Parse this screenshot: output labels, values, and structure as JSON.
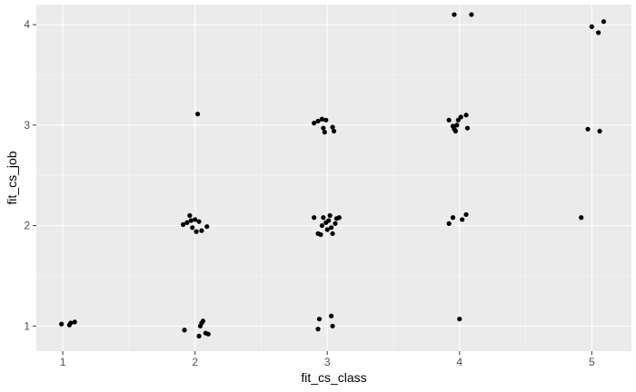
{
  "chart_data": {
    "type": "scatter",
    "title": "",
    "xlabel": "fit_cs_class",
    "ylabel": "fit_cs_job",
    "xlim": [
      0.8,
      5.3
    ],
    "ylim": [
      0.75,
      4.2
    ],
    "x_ticks": [
      1,
      2,
      3,
      4,
      5
    ],
    "y_ticks": [
      1,
      2,
      3,
      4
    ],
    "x_tick_labels": [
      "1",
      "2",
      "3",
      "4",
      "5"
    ],
    "y_tick_labels": [
      "1",
      "2",
      "3",
      "4"
    ],
    "grid": true,
    "colors": {
      "panel_bg": "#ebebeb",
      "grid_major": "#ffffff",
      "grid_minor": "#f5f5f5",
      "point": "#000000",
      "tick": "#333333"
    },
    "points": [
      {
        "x": 0.99,
        "y": 1.02
      },
      {
        "x": 1.05,
        "y": 1.01
      },
      {
        "x": 1.06,
        "y": 1.03
      },
      {
        "x": 1.09,
        "y": 1.04
      },
      {
        "x": 1.92,
        "y": 0.96
      },
      {
        "x": 2.03,
        "y": 0.9
      },
      {
        "x": 2.04,
        "y": 1.0
      },
      {
        "x": 2.05,
        "y": 1.03
      },
      {
        "x": 2.06,
        "y": 1.05
      },
      {
        "x": 2.08,
        "y": 0.93
      },
      {
        "x": 2.1,
        "y": 0.92
      },
      {
        "x": 2.02,
        "y": 3.11
      },
      {
        "x": 1.91,
        "y": 2.01
      },
      {
        "x": 1.94,
        "y": 2.03
      },
      {
        "x": 1.96,
        "y": 2.1
      },
      {
        "x": 1.98,
        "y": 1.98
      },
      {
        "x": 2.0,
        "y": 2.06
      },
      {
        "x": 2.01,
        "y": 1.94
      },
      {
        "x": 2.03,
        "y": 2.04
      },
      {
        "x": 2.05,
        "y": 1.95
      },
      {
        "x": 2.09,
        "y": 1.99
      },
      {
        "x": 1.97,
        "y": 2.05
      },
      {
        "x": 2.93,
        "y": 0.97
      },
      {
        "x": 2.94,
        "y": 1.07
      },
      {
        "x": 3.03,
        "y": 1.1
      },
      {
        "x": 3.04,
        "y": 1.0
      },
      {
        "x": 2.9,
        "y": 2.08
      },
      {
        "x": 2.93,
        "y": 1.92
      },
      {
        "x": 2.95,
        "y": 1.91
      },
      {
        "x": 2.96,
        "y": 2.0
      },
      {
        "x": 2.97,
        "y": 2.08
      },
      {
        "x": 2.99,
        "y": 2.03
      },
      {
        "x": 3.0,
        "y": 1.96
      },
      {
        "x": 3.01,
        "y": 2.05
      },
      {
        "x": 3.02,
        "y": 2.1
      },
      {
        "x": 3.03,
        "y": 1.98
      },
      {
        "x": 3.04,
        "y": 1.92
      },
      {
        "x": 3.06,
        "y": 2.02
      },
      {
        "x": 3.07,
        "y": 2.07
      },
      {
        "x": 3.09,
        "y": 2.08
      },
      {
        "x": 2.9,
        "y": 3.02
      },
      {
        "x": 2.93,
        "y": 3.04
      },
      {
        "x": 2.96,
        "y": 3.06
      },
      {
        "x": 2.97,
        "y": 2.97
      },
      {
        "x": 2.98,
        "y": 2.93
      },
      {
        "x": 2.99,
        "y": 3.05
      },
      {
        "x": 3.04,
        "y": 2.98
      },
      {
        "x": 3.05,
        "y": 2.94
      },
      {
        "x": 4.0,
        "y": 1.07
      },
      {
        "x": 3.92,
        "y": 2.02
      },
      {
        "x": 3.95,
        "y": 2.08
      },
      {
        "x": 4.02,
        "y": 2.06
      },
      {
        "x": 4.05,
        "y": 2.11
      },
      {
        "x": 3.92,
        "y": 3.05
      },
      {
        "x": 3.95,
        "y": 2.99
      },
      {
        "x": 3.96,
        "y": 2.96
      },
      {
        "x": 3.97,
        "y": 2.94
      },
      {
        "x": 3.98,
        "y": 3.0
      },
      {
        "x": 3.99,
        "y": 3.05
      },
      {
        "x": 4.01,
        "y": 3.08
      },
      {
        "x": 4.05,
        "y": 3.1
      },
      {
        "x": 4.06,
        "y": 2.97
      },
      {
        "x": 3.96,
        "y": 4.1
      },
      {
        "x": 4.09,
        "y": 4.1
      },
      {
        "x": 4.92,
        "y": 2.08
      },
      {
        "x": 4.97,
        "y": 2.96
      },
      {
        "x": 5.06,
        "y": 2.94
      },
      {
        "x": 5.0,
        "y": 3.98
      },
      {
        "x": 5.05,
        "y": 3.92
      },
      {
        "x": 5.09,
        "y": 4.03
      }
    ]
  }
}
